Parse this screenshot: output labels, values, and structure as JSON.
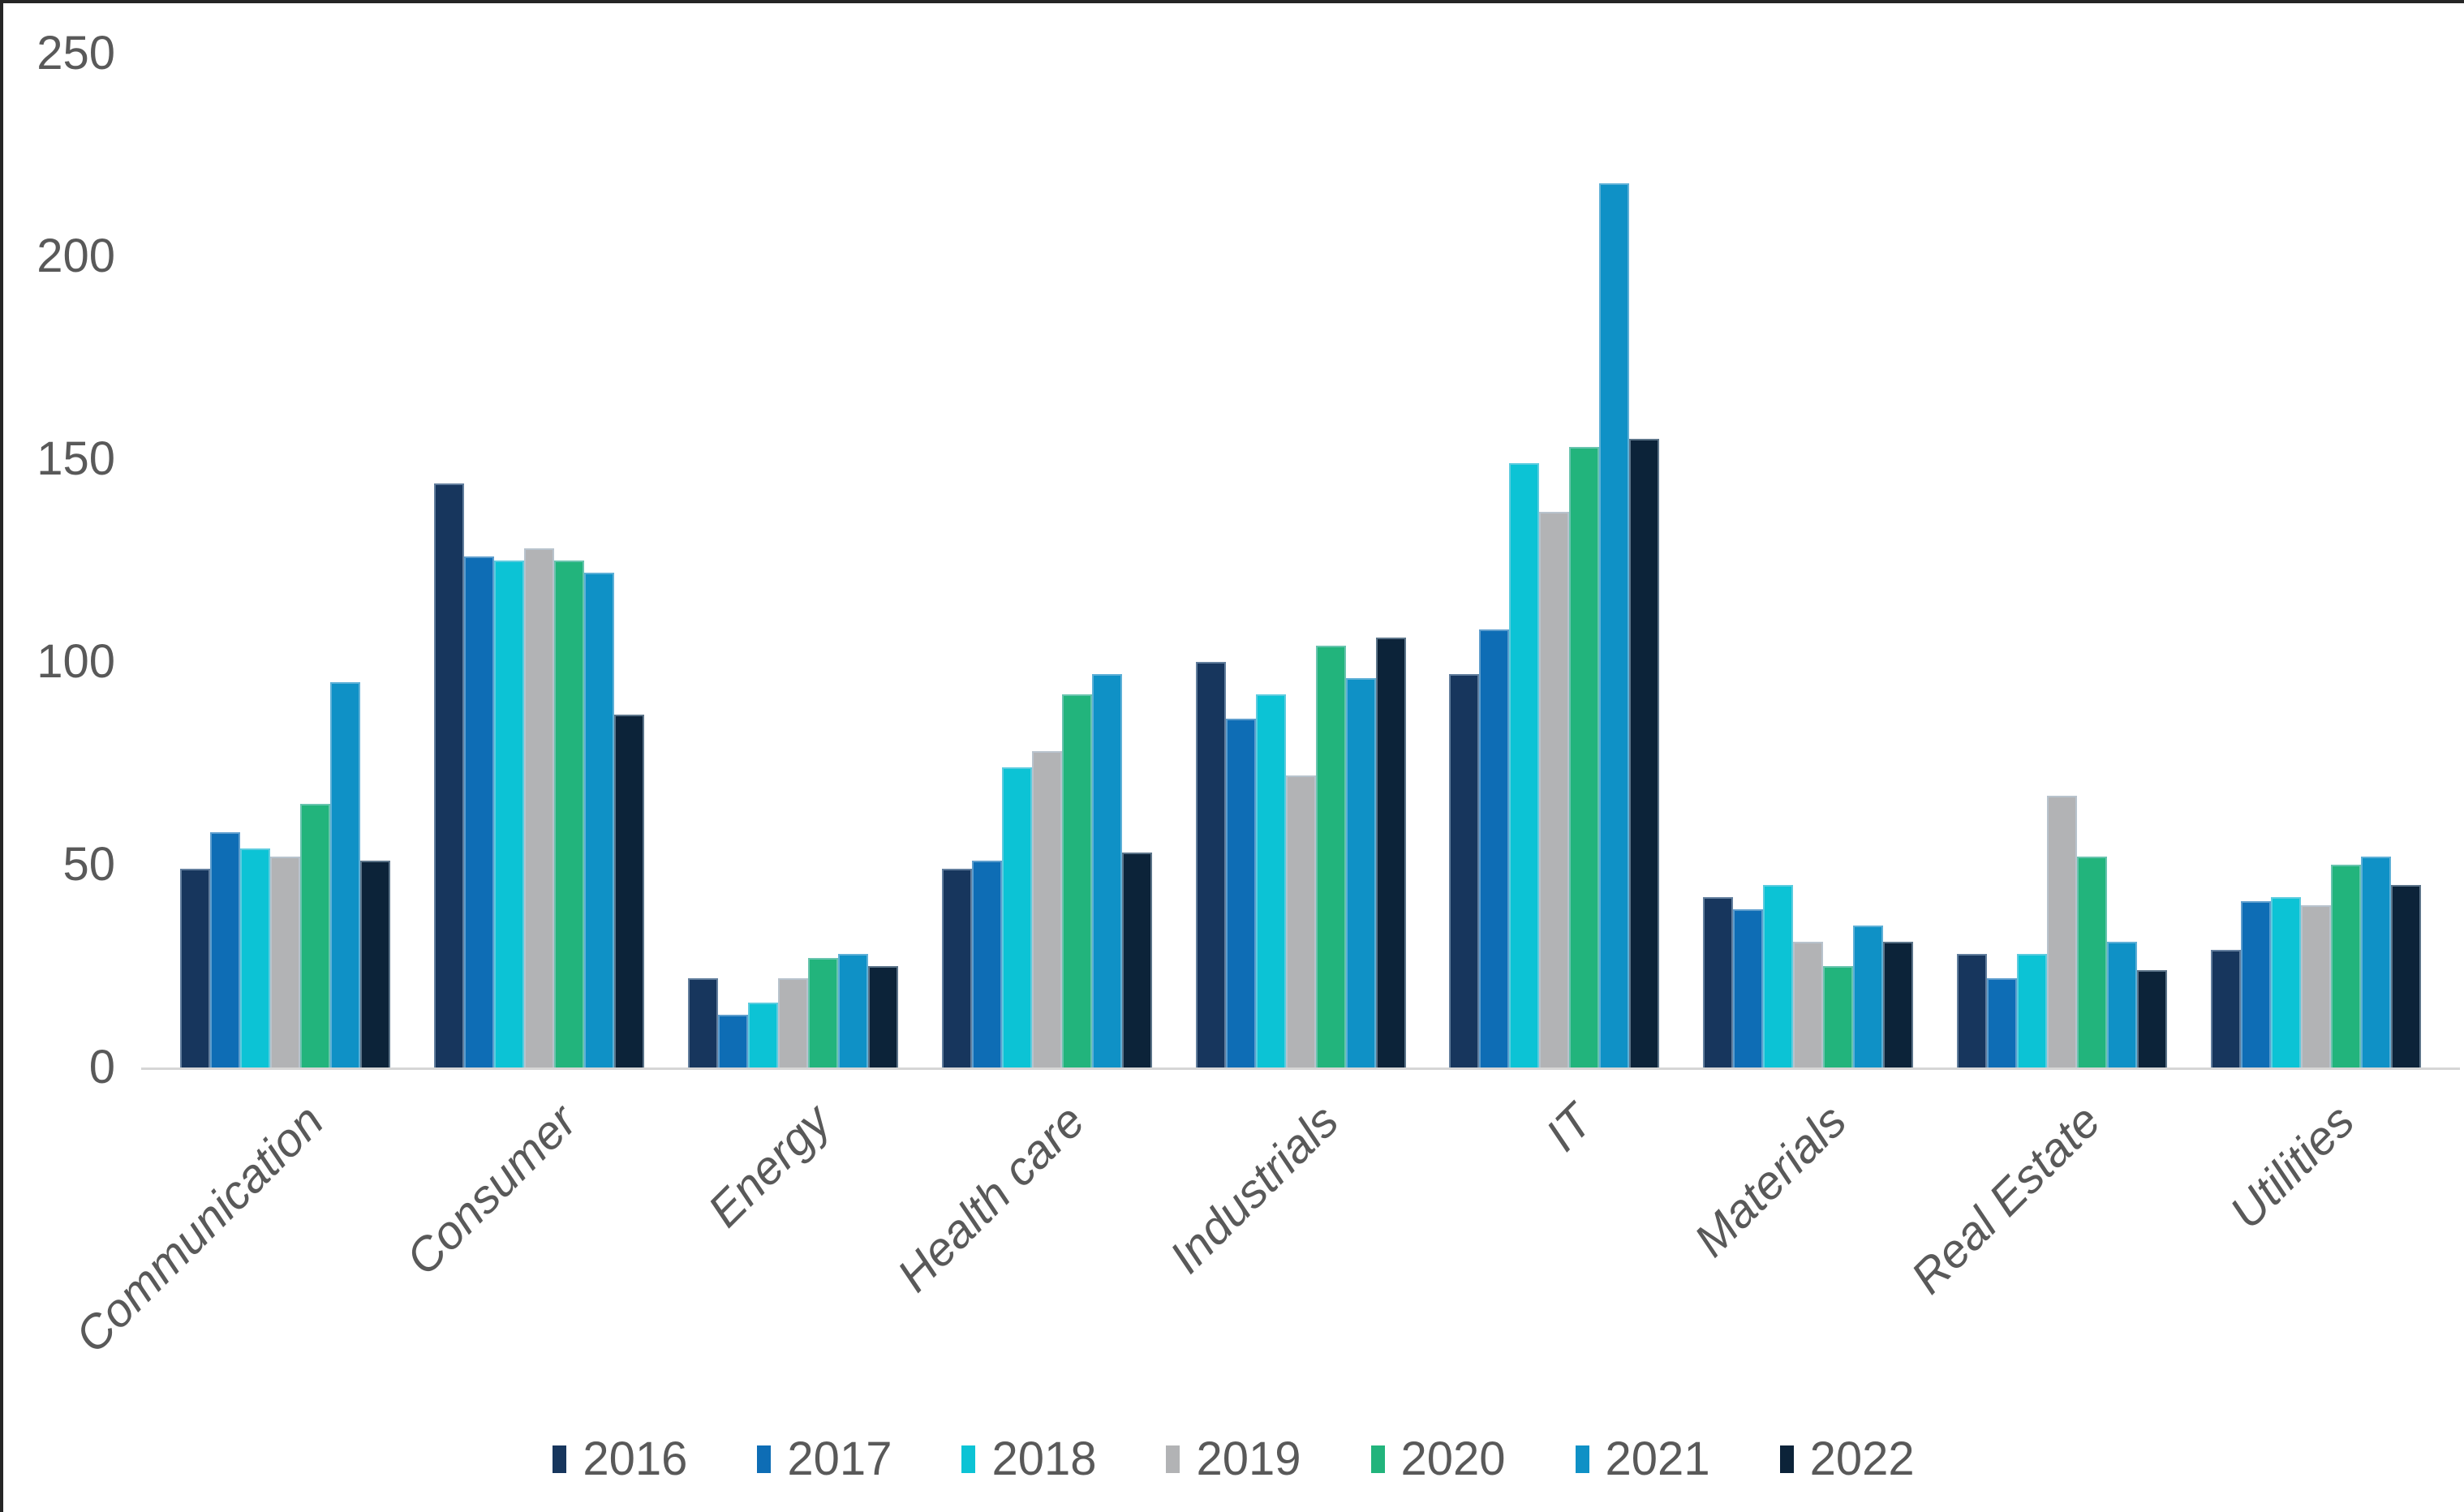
{
  "chart_data": {
    "type": "bar",
    "title": "",
    "categories": [
      "Communication",
      "Consumer",
      "Energy",
      "Health care",
      "Industrials",
      "IT",
      "Materials",
      "Real Estate",
      "Utilities"
    ],
    "series": [
      {
        "name": "2016",
        "color": "#17365d",
        "values": [
          49,
          144,
          22,
          49,
          100,
          97,
          42,
          28,
          29
        ]
      },
      {
        "name": "2017",
        "color": "#0e6db5",
        "values": [
          58,
          126,
          13,
          51,
          86,
          108,
          39,
          22,
          41
        ]
      },
      {
        "name": "2018",
        "color": "#0cc3d5",
        "values": [
          54,
          125,
          16,
          74,
          92,
          149,
          45,
          28,
          42
        ]
      },
      {
        "name": "2019",
        "color": "#b2b3b5",
        "values": [
          52,
          128,
          22,
          78,
          72,
          137,
          31,
          67,
          40
        ]
      },
      {
        "name": "2020",
        "color": "#22b47c",
        "values": [
          65,
          125,
          27,
          92,
          104,
          153,
          25,
          52,
          50
        ]
      },
      {
        "name": "2021",
        "color": "#0f91c6",
        "values": [
          95,
          122,
          28,
          97,
          96,
          218,
          35,
          31,
          52
        ]
      },
      {
        "name": "2022",
        "color": "#0c2339",
        "values": [
          51,
          87,
          25,
          53,
          106,
          155,
          31,
          24,
          45
        ]
      }
    ],
    "y_axis": {
      "ticks": [
        250,
        200,
        150,
        100,
        50,
        0
      ],
      "min": 0,
      "max": 250
    },
    "x_axis": {
      "label_rotation_deg": 45
    },
    "grid": false,
    "legend_position": "bottom"
  },
  "style": {
    "text_color": "#595959",
    "axis_line_color": "#d6d6d6",
    "background": "#ffffff"
  }
}
